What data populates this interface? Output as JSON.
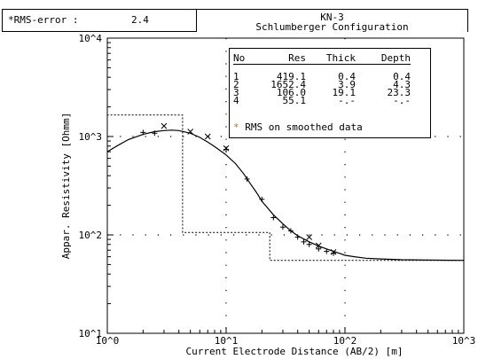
{
  "rms": {
    "label": "*RMS-error :",
    "value": "2.4"
  },
  "header": {
    "site": "KN-3",
    "config": "Schlumberger Configuration"
  },
  "legend": {
    "columns": [
      "No",
      "Res",
      "Thick",
      "Depth"
    ],
    "rows": [
      [
        "1",
        "419.1",
        "0.4",
        "0.4"
      ],
      [
        "2",
        "1652.4",
        "3.9",
        "4.3"
      ],
      [
        "3",
        "106.0",
        "19.1",
        "23.3"
      ],
      [
        "4",
        "55.1",
        "-.-",
        "-.-"
      ]
    ],
    "note_symbol": "*",
    "note": "RMS on smoothed data"
  },
  "chart_data": {
    "type": "line",
    "xscale": "log",
    "yscale": "log",
    "xlim": [
      1,
      1000
    ],
    "ylim": [
      10,
      10000
    ],
    "xlabel": "Current Electrode Distance (AB/2) [m]",
    "ylabel": "Appar. Resistivity [Ohmm]",
    "x_tick_labels": [
      "10^0",
      "10^1",
      "10^2",
      "10^3"
    ],
    "y_tick_labels": [
      "10^1",
      "10^2",
      "10^3",
      "10^4"
    ],
    "grid": "dotted",
    "series": [
      {
        "type": "line",
        "style": "solid",
        "x": [
          1.0,
          1.2,
          1.5,
          2.0,
          2.5,
          3.0,
          3.5,
          4.0,
          5.0,
          6.0,
          7.0,
          8.0,
          10.0,
          12.0,
          14.0,
          16.0,
          18.0,
          20.0,
          25.0,
          30.0,
          35.0,
          40.0,
          50.0,
          60.0,
          70.0,
          80.0,
          90.0,
          100.0,
          120.0,
          150.0,
          200.0,
          300.0,
          500.0,
          1000.0
        ],
        "y": [
          700,
          800,
          930,
          1050,
          1120,
          1150,
          1160,
          1150,
          1080,
          980,
          880,
          790,
          650,
          530,
          420,
          330,
          270,
          220,
          160,
          130,
          110,
          98,
          85,
          77,
          72,
          68,
          65,
          62,
          60,
          58,
          57,
          56,
          55.5,
          55.1
        ]
      },
      {
        "type": "step",
        "style": "dotted",
        "x": [
          1.0,
          0.4,
          4.3,
          23.3,
          1000
        ],
        "y": [
          419.1,
          1652.4,
          106.0,
          55.1,
          55.1
        ]
      },
      {
        "type": "scatter",
        "marker": "+",
        "x": [
          2.0,
          2.5,
          10.0,
          15.0,
          20.0,
          25.0,
          30.0,
          35.0,
          40.0,
          45.0,
          50.0,
          60.0,
          70.0,
          80.0
        ],
        "y": [
          1100,
          1080,
          740,
          370,
          230,
          150,
          120,
          110,
          95,
          85,
          80,
          72,
          68,
          65
        ]
      },
      {
        "type": "scatter",
        "marker": "x",
        "x": [
          3.0,
          5.0,
          7.0,
          10.0,
          50.0,
          60.0,
          80.0
        ],
        "y": [
          1280,
          1120,
          1000,
          760,
          95,
          78,
          67
        ]
      }
    ]
  }
}
